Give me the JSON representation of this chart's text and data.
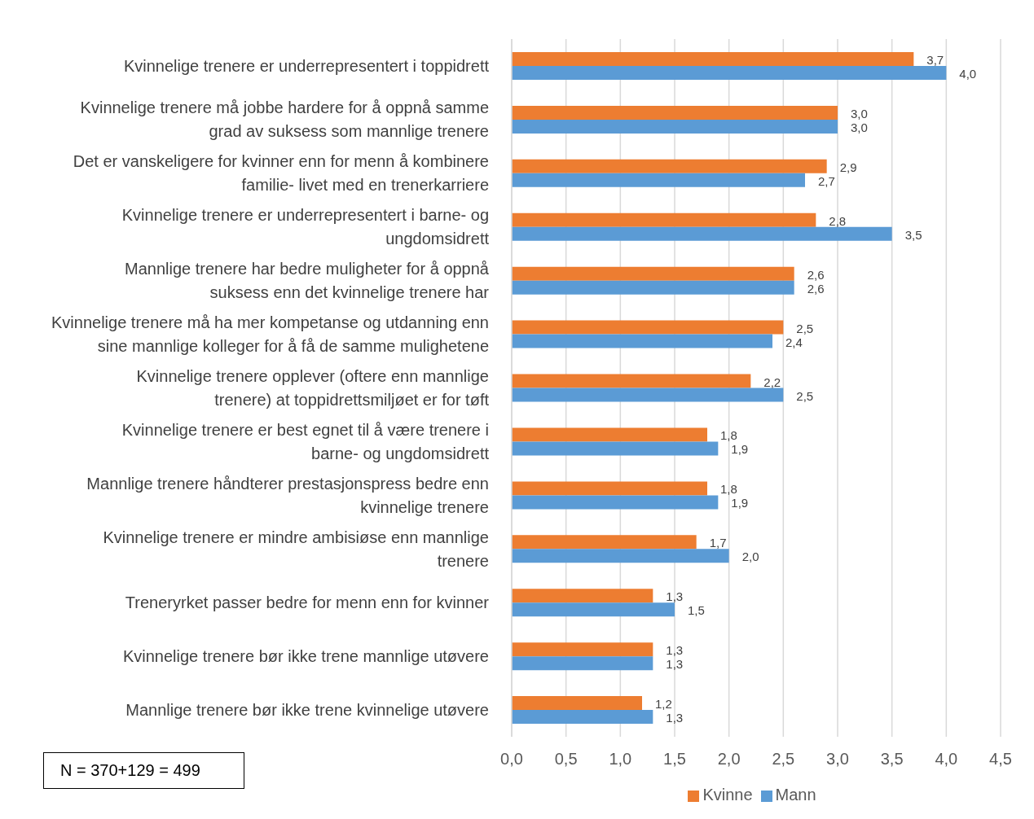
{
  "chart_data": {
    "type": "bar",
    "orientation": "horizontal",
    "categories": [
      "Kvinnelige trenere er underrepresentert i toppidrett",
      "Kvinnelige trenere må jobbe hardere for å oppnå samme grad av suksess som mannlige trenere",
      "Det er vanskeligere for kvinner enn for menn å kombinere familie- livet med en trenerkarriere",
      "Kvinnelige trenere er underrepresentert i barne- og ungdomsidrett",
      "Mannlige trenere har bedre muligheter for å oppnå suksess enn det kvinnelige trenere har",
      "Kvinnelige trenere må ha mer kompetanse og utdanning enn sine mannlige kolleger for å få de samme mulighetene",
      "Kvinnelige trenere opplever (oftere enn mannlige trenere) at toppidrettsmiljøet er for tøft",
      "Kvinnelige trenere er best egnet til å være trenere i barne- og ungdomsidrett",
      "Mannlige trenere håndterer prestasjonspress bedre enn kvinnelige trenere",
      "Kvinnelige trenere er mindre ambisiøse enn mannlige trenere",
      "Treneryrket passer bedre for menn enn for kvinner",
      "Kvinnelige trenere bør ikke trene mannlige utøvere",
      "Mannlige trenere bør ikke trene kvinnelige utøvere"
    ],
    "series": [
      {
        "name": "Kvinne",
        "color": "#ed7d31",
        "values": [
          3.7,
          3.0,
          2.9,
          2.8,
          2.6,
          2.5,
          2.2,
          1.8,
          1.8,
          1.7,
          1.3,
          1.3,
          1.2
        ],
        "value_labels": [
          "3,7",
          "3,0",
          "2,9",
          "2,8",
          "2,6",
          "2,5",
          "2,2",
          "1,8",
          "1,8",
          "1,7",
          "1,3",
          "1,3",
          "1,2"
        ]
      },
      {
        "name": "Mann",
        "color": "#5b9bd5",
        "values": [
          4.0,
          3.0,
          2.7,
          3.5,
          2.6,
          2.4,
          2.5,
          1.9,
          1.9,
          2.0,
          1.5,
          1.3,
          1.3
        ],
        "value_labels": [
          "4,0",
          "3,0",
          "2,7",
          "3,5",
          "2,6",
          "2,4",
          "2,5",
          "1,9",
          "1,9",
          "2,0",
          "1,5",
          "1,3",
          "1,3"
        ]
      }
    ],
    "xlim": [
      0,
      4.5
    ],
    "xticks": [
      {
        "value": 0,
        "label": "0,0"
      },
      {
        "value": 0.5,
        "label": "0,5"
      },
      {
        "value": 1,
        "label": "1,0"
      },
      {
        "value": 1.5,
        "label": "1,5"
      },
      {
        "value": 2,
        "label": "2,0"
      },
      {
        "value": 2.5,
        "label": "2,5"
      },
      {
        "value": 3,
        "label": "3,0"
      },
      {
        "value": 3.5,
        "label": "3,5"
      },
      {
        "value": 4,
        "label": "4,0"
      },
      {
        "value": 4.5,
        "label": "4,5"
      }
    ],
    "grid": "x",
    "legend": "bottom",
    "annotations": [
      "N = 370+129 = 499"
    ]
  }
}
